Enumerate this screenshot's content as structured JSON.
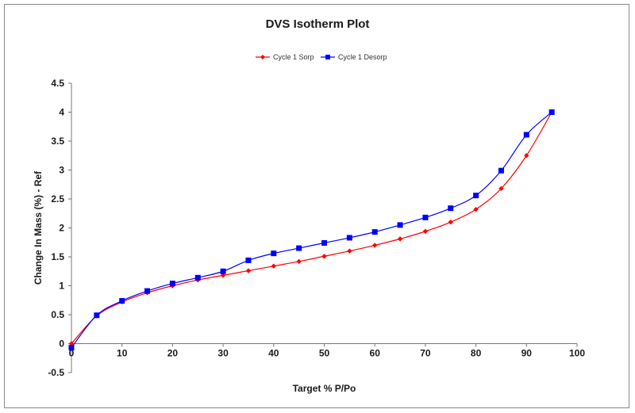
{
  "chart_data": {
    "type": "line",
    "title": "DVS Isotherm Plot",
    "xlabel": "Target %  P/Po",
    "ylabel": "Change In Mass (%)  - Ref",
    "xlim": [
      0,
      100
    ],
    "ylim": [
      -0.5,
      4.5
    ],
    "x_ticks": [
      "0",
      "10",
      "20",
      "30",
      "40",
      "50",
      "60",
      "70",
      "80",
      "90",
      "100"
    ],
    "y_ticks": [
      "-0.5",
      "0",
      "0.5",
      "1",
      "1.5",
      "2",
      "2.5",
      "3",
      "3.5",
      "4",
      "4.5"
    ],
    "grid": false,
    "legend_position": "top-center",
    "series": [
      {
        "name": "Cycle 1 Sorp",
        "color": "#ff0000",
        "marker": "diamond",
        "x": [
          0,
          5,
          10,
          15,
          20,
          25,
          30,
          35,
          40,
          45,
          50,
          55,
          60,
          65,
          70,
          75,
          80,
          85,
          90,
          95
        ],
        "values": [
          0.0,
          0.48,
          0.72,
          0.88,
          1.0,
          1.1,
          1.18,
          1.26,
          1.34,
          1.42,
          1.51,
          1.6,
          1.7,
          1.81,
          1.94,
          2.1,
          2.32,
          2.68,
          3.25,
          4.0
        ]
      },
      {
        "name": "Cycle 1 Desorp",
        "color": "#0000ff",
        "marker": "square",
        "x": [
          0,
          5,
          10,
          15,
          20,
          25,
          30,
          35,
          40,
          45,
          50,
          55,
          60,
          65,
          70,
          75,
          80,
          85,
          90,
          95
        ],
        "values": [
          -0.07,
          0.49,
          0.74,
          0.91,
          1.04,
          1.14,
          1.25,
          1.44,
          1.56,
          1.65,
          1.74,
          1.83,
          1.93,
          2.05,
          2.18,
          2.34,
          2.56,
          2.99,
          3.61,
          4.0
        ]
      }
    ]
  }
}
